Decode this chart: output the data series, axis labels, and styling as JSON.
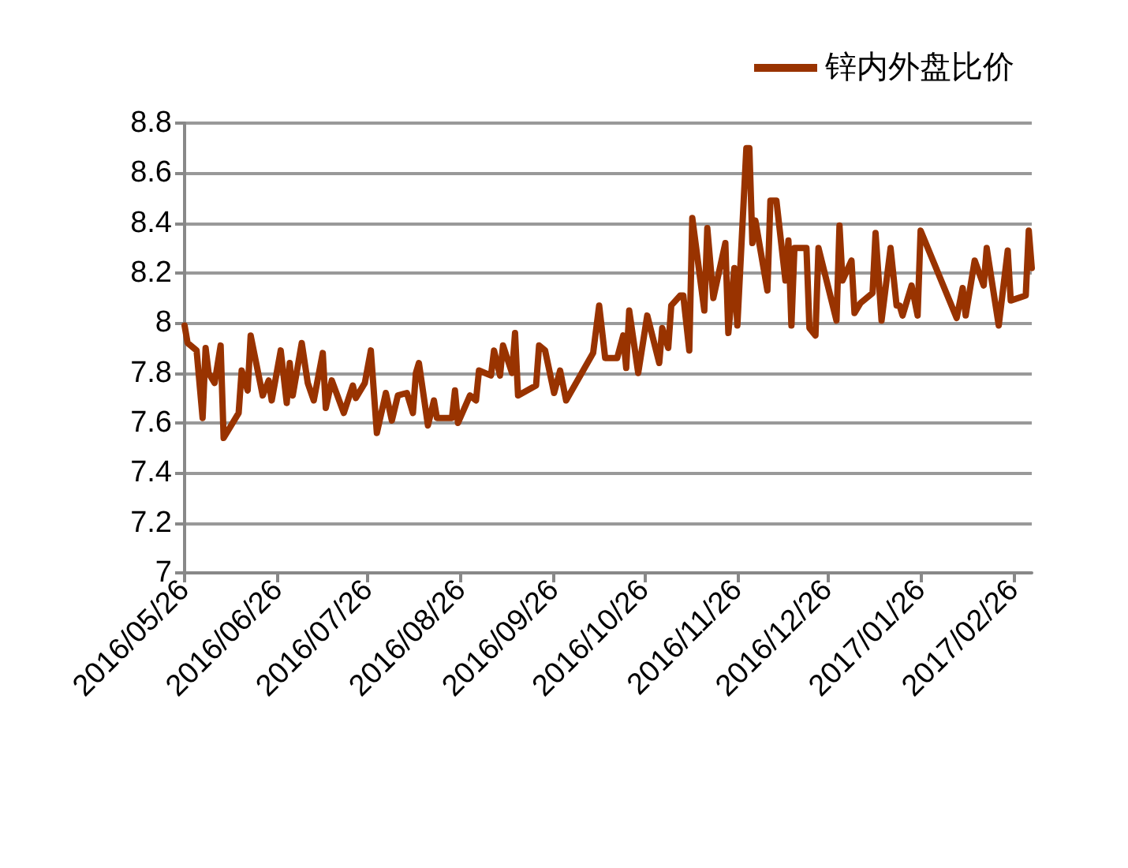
{
  "chart_data": {
    "type": "line",
    "legend": "top right",
    "grid": "y",
    "marker": "none",
    "line_style": "solid",
    "xlim": [
      "2016-05-26",
      "2017-03-04"
    ],
    "ylim": [
      7,
      8.8
    ],
    "yticks": [
      7,
      7.2,
      7.4,
      7.6,
      7.8,
      8,
      8.2,
      8.4,
      8.6,
      8.8
    ],
    "xticks": [
      {
        "value": "2016-05-26",
        "label": "2016/05/26"
      },
      {
        "value": "2016-06-26",
        "label": "2016/06/26"
      },
      {
        "value": "2016-07-26",
        "label": "2016/07/26"
      },
      {
        "value": "2016-08-26",
        "label": "2016/08/26"
      },
      {
        "value": "2016-09-26",
        "label": "2016/09/26"
      },
      {
        "value": "2016-10-26",
        "label": "2016/10/26"
      },
      {
        "value": "2016-11-26",
        "label": "2016/11/26"
      },
      {
        "value": "2016-12-26",
        "label": "2016/12/26"
      },
      {
        "value": "2017-01-26",
        "label": "2017/01/26"
      },
      {
        "value": "2017-02-26",
        "label": "2017/02/26"
      }
    ],
    "x": [
      "2016-05-26",
      "2016-05-27",
      "2016-05-30",
      "2016-06-01",
      "2016-06-02",
      "2016-06-03",
      "2016-06-05",
      "2016-06-07",
      "2016-06-08",
      "2016-06-13",
      "2016-06-14",
      "2016-06-16",
      "2016-06-17",
      "2016-06-21",
      "2016-06-23",
      "2016-06-24",
      "2016-06-27",
      "2016-06-29",
      "2016-06-30",
      "2016-07-01",
      "2016-07-04",
      "2016-07-06",
      "2016-07-08",
      "2016-07-11",
      "2016-07-12",
      "2016-07-14",
      "2016-07-18",
      "2016-07-21",
      "2016-07-22",
      "2016-07-25",
      "2016-07-27",
      "2016-07-29",
      "2016-08-01",
      "2016-08-03",
      "2016-08-05",
      "2016-08-08",
      "2016-08-10",
      "2016-08-11",
      "2016-08-12",
      "2016-08-15",
      "2016-08-17",
      "2016-08-18",
      "2016-08-23",
      "2016-08-24",
      "2016-08-25",
      "2016-08-29",
      "2016-08-31",
      "2016-09-01",
      "2016-09-05",
      "2016-09-06",
      "2016-09-08",
      "2016-09-09",
      "2016-09-12",
      "2016-09-13",
      "2016-09-14",
      "2016-09-20",
      "2016-09-21",
      "2016-09-23",
      "2016-09-26",
      "2016-09-28",
      "2016-09-30",
      "2016-10-09",
      "2016-10-11",
      "2016-10-13",
      "2016-10-17",
      "2016-10-19",
      "2016-10-20",
      "2016-10-21",
      "2016-10-24",
      "2016-10-27",
      "2016-10-31",
      "2016-11-01",
      "2016-11-03",
      "2016-11-04",
      "2016-11-07",
      "2016-11-08",
      "2016-11-10",
      "2016-11-11",
      "2016-11-15",
      "2016-11-16",
      "2016-11-18",
      "2016-11-22",
      "2016-11-23",
      "2016-11-25",
      "2016-11-26",
      "2016-11-29",
      "2016-11-30",
      "2016-12-01",
      "2016-12-02",
      "2016-12-06",
      "2016-12-07",
      "2016-12-09",
      "2016-12-12",
      "2016-12-13",
      "2016-12-14",
      "2016-12-15",
      "2016-12-19",
      "2016-12-20",
      "2016-12-22",
      "2016-12-23",
      "2016-12-29",
      "2016-12-30",
      "2016-12-31",
      "2017-01-03",
      "2017-01-04",
      "2017-01-06",
      "2017-01-10",
      "2017-01-11",
      "2017-01-13",
      "2017-01-16",
      "2017-01-18",
      "2017-01-19",
      "2017-01-20",
      "2017-01-23",
      "2017-01-25",
      "2017-01-26",
      "2017-02-07",
      "2017-02-09",
      "2017-02-10",
      "2017-02-13",
      "2017-02-16",
      "2017-02-17",
      "2017-02-21",
      "2017-02-24",
      "2017-02-25",
      "2017-03-02",
      "2017-03-03",
      "2017-03-04"
    ],
    "series": [
      {
        "name": "锌内外盘比价",
        "color": "#993300",
        "values": [
          7.99,
          7.92,
          7.89,
          7.62,
          7.9,
          7.8,
          7.76,
          7.91,
          7.54,
          7.64,
          7.81,
          7.73,
          7.95,
          7.71,
          7.77,
          7.69,
          7.89,
          7.68,
          7.84,
          7.71,
          7.92,
          7.76,
          7.69,
          7.88,
          7.66,
          7.77,
          7.64,
          7.75,
          7.7,
          7.76,
          7.89,
          7.56,
          7.72,
          7.61,
          7.71,
          7.72,
          7.64,
          7.8,
          7.84,
          7.59,
          7.69,
          7.62,
          7.62,
          7.73,
          7.6,
          7.71,
          7.69,
          7.81,
          7.79,
          7.89,
          7.79,
          7.91,
          7.8,
          7.96,
          7.71,
          7.75,
          7.91,
          7.89,
          7.72,
          7.81,
          7.69,
          7.88,
          8.07,
          7.86,
          7.86,
          7.95,
          7.82,
          8.05,
          7.8,
          8.03,
          7.84,
          7.98,
          7.9,
          8.07,
          8.11,
          8.11,
          7.89,
          8.42,
          8.05,
          8.38,
          8.1,
          8.32,
          7.96,
          8.22,
          7.99,
          8.7,
          8.7,
          8.32,
          8.41,
          8.13,
          8.49,
          8.49,
          8.17,
          8.33,
          7.99,
          8.3,
          8.3,
          7.98,
          7.95,
          8.3,
          8.01,
          8.39,
          8.17,
          8.25,
          8.04,
          8.08,
          8.12,
          8.36,
          8.01,
          8.3,
          8.07,
          8.07,
          8.03,
          8.15,
          8.03,
          8.37,
          8.02,
          8.14,
          8.03,
          8.25,
          8.15,
          8.3,
          7.99,
          8.29,
          8.09,
          8.11,
          8.37,
          8.22
        ]
      }
    ]
  }
}
